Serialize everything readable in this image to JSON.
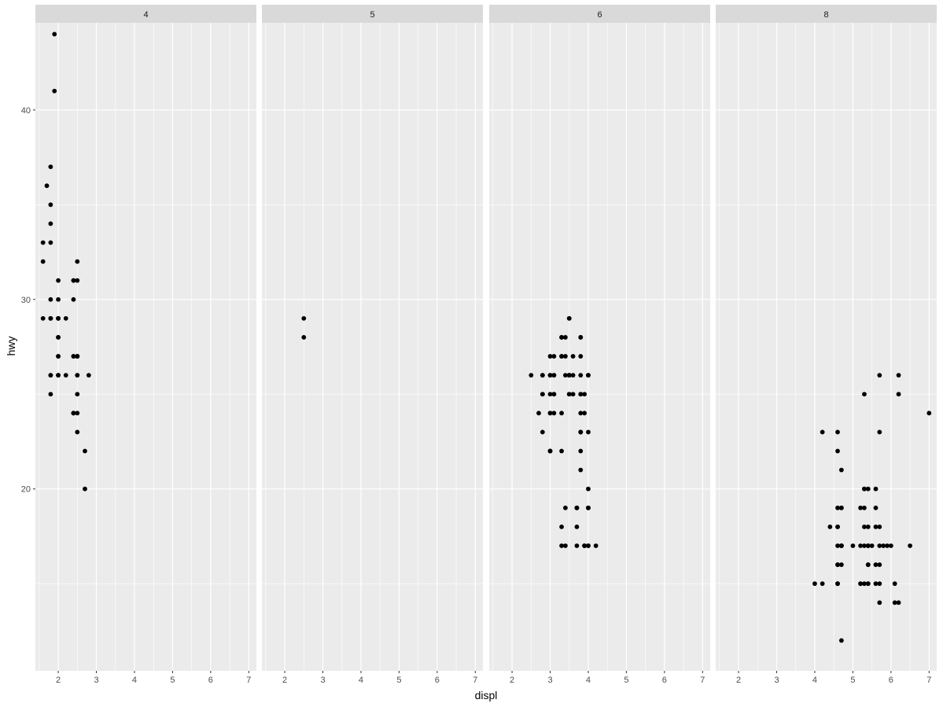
{
  "chart_data": {
    "type": "scatter",
    "facet_by": "cyl",
    "xlabel": "displ",
    "ylabel": "hwy",
    "xlim": [
      1.4,
      7.2
    ],
    "ylim": [
      10.4,
      44.6
    ],
    "x_ticks": [
      2,
      3,
      4,
      5,
      6,
      7
    ],
    "y_ticks": [
      20,
      30,
      40
    ],
    "grid": true,
    "colors": {
      "panel": "#ebebeb",
      "strip": "#d9d9d9",
      "grid": "#ffffff",
      "point": "#000000"
    },
    "facets": [
      {
        "label": "4",
        "points": [
          [
            1.8,
            29
          ],
          [
            1.8,
            29
          ],
          [
            2.0,
            31
          ],
          [
            2.0,
            30
          ],
          [
            2.8,
            26
          ],
          [
            2.0,
            28
          ],
          [
            1.8,
            26
          ],
          [
            1.8,
            25
          ],
          [
            2.0,
            29
          ],
          [
            2.0,
            26
          ],
          [
            2.4,
            27
          ],
          [
            2.4,
            30
          ],
          [
            2.2,
            26
          ],
          [
            2.2,
            29
          ],
          [
            2.4,
            27
          ],
          [
            2.4,
            31
          ],
          [
            1.8,
            26
          ],
          [
            1.9,
            44
          ],
          [
            1.9,
            41
          ],
          [
            2.0,
            29
          ],
          [
            2.0,
            26
          ],
          [
            1.8,
            29
          ],
          [
            2.5,
            26
          ],
          [
            2.5,
            27
          ],
          [
            2.5,
            25
          ],
          [
            2.5,
            27
          ],
          [
            2.5,
            24
          ],
          [
            2.5,
            26
          ],
          [
            2.5,
            31
          ],
          [
            2.5,
            32
          ],
          [
            1.6,
            33
          ],
          [
            1.6,
            32
          ],
          [
            1.7,
            36
          ],
          [
            1.8,
            37
          ],
          [
            1.8,
            35
          ],
          [
            1.6,
            29
          ],
          [
            1.8,
            34
          ],
          [
            1.8,
            33
          ],
          [
            2.4,
            24
          ],
          [
            2.4,
            24
          ],
          [
            2.0,
            29
          ],
          [
            2.0,
            28
          ],
          [
            2.0,
            27
          ],
          [
            2.4,
            24
          ],
          [
            2.5,
            23
          ],
          [
            2.7,
            22
          ],
          [
            2.7,
            20
          ],
          [
            1.8,
            30
          ],
          [
            2.0,
            29
          ],
          [
            2.0,
            26
          ],
          [
            2.4,
            31
          ],
          [
            2.0,
            27
          ],
          [
            2.5,
            27
          ]
        ]
      },
      {
        "label": "5",
        "points": [
          [
            2.5,
            29
          ],
          [
            2.5,
            28
          ]
        ]
      },
      {
        "label": "6",
        "points": [
          [
            2.8,
            26
          ],
          [
            3.1,
            27
          ],
          [
            2.8,
            25
          ],
          [
            3.1,
            25
          ],
          [
            3.1,
            25
          ],
          [
            3.8,
            24
          ],
          [
            3.8,
            23
          ],
          [
            3.8,
            22
          ],
          [
            3.9,
            17
          ],
          [
            3.9,
            17
          ],
          [
            4.0,
            17
          ],
          [
            4.0,
            19
          ],
          [
            3.0,
            26
          ],
          [
            3.3,
            17
          ],
          [
            3.3,
            18
          ],
          [
            4.0,
            26
          ],
          [
            4.0,
            26
          ],
          [
            3.4,
            19
          ],
          [
            3.7,
            19
          ],
          [
            4.0,
            20
          ],
          [
            4.2,
            17
          ],
          [
            3.4,
            17
          ],
          [
            4.0,
            19
          ],
          [
            3.5,
            26
          ],
          [
            3.5,
            26
          ],
          [
            3.8,
            25
          ],
          [
            4.0,
            23
          ],
          [
            3.3,
            27
          ],
          [
            3.3,
            24
          ],
          [
            3.8,
            27
          ],
          [
            3.8,
            26
          ],
          [
            3.8,
            28
          ],
          [
            2.5,
            26
          ],
          [
            3.5,
            25
          ],
          [
            2.7,
            24
          ],
          [
            3.3,
            22
          ],
          [
            3.0,
            25
          ],
          [
            3.0,
            24
          ],
          [
            3.4,
            27
          ],
          [
            3.1,
            26
          ],
          [
            3.6,
            26
          ],
          [
            3.9,
            25
          ],
          [
            3.3,
            28
          ],
          [
            3.5,
            29
          ],
          [
            3.5,
            26
          ],
          [
            3.7,
            19
          ],
          [
            3.7,
            18
          ],
          [
            4.0,
            17
          ],
          [
            4.0,
            19
          ],
          [
            4.0,
            26
          ],
          [
            3.5,
            25
          ],
          [
            2.8,
            23
          ],
          [
            3.0,
            22
          ],
          [
            3.5,
            29
          ],
          [
            2.8,
            25
          ],
          [
            2.8,
            26
          ],
          [
            3.6,
            27
          ],
          [
            3.8,
            28
          ],
          [
            3.8,
            21
          ],
          [
            3.8,
            23
          ],
          [
            3.7,
            19
          ],
          [
            3.3,
            27
          ],
          [
            3.3,
            28
          ],
          [
            3.0,
            26
          ],
          [
            3.0,
            27
          ],
          [
            3.4,
            26
          ],
          [
            3.6,
            25
          ],
          [
            3.1,
            24
          ],
          [
            3.1,
            26
          ],
          [
            3.4,
            28
          ],
          [
            3.7,
            17
          ],
          [
            3.5,
            26
          ],
          [
            3.0,
            24
          ],
          [
            3.0,
            22
          ],
          [
            3.9,
            24
          ],
          [
            3.9,
            17
          ],
          [
            3.8,
            25
          ],
          [
            3.8,
            23
          ],
          [
            3.0,
            22
          ]
        ]
      },
      {
        "label": "8",
        "points": [
          [
            5.7,
            26
          ],
          [
            5.7,
            23
          ],
          [
            6.2,
            26
          ],
          [
            6.2,
            25
          ],
          [
            7.0,
            24
          ],
          [
            5.3,
            20
          ],
          [
            5.3,
            15
          ],
          [
            5.3,
            20
          ],
          [
            5.7,
            17
          ],
          [
            6.5,
            17
          ],
          [
            5.7,
            15
          ],
          [
            5.3,
            25
          ],
          [
            5.3,
            17
          ],
          [
            5.7,
            14
          ],
          [
            6.0,
            17
          ],
          [
            5.4,
            15
          ],
          [
            4.7,
            17
          ],
          [
            4.7,
            17
          ],
          [
            4.7,
            12
          ],
          [
            5.2,
            15
          ],
          [
            5.7,
            16
          ],
          [
            5.9,
            17
          ],
          [
            5.2,
            17
          ],
          [
            4.7,
            19
          ],
          [
            4.6,
            15
          ],
          [
            5.4,
            18
          ],
          [
            4.6,
            17
          ],
          [
            5.0,
            17
          ],
          [
            4.6,
            18
          ],
          [
            4.2,
            15
          ],
          [
            4.6,
            16
          ],
          [
            5.4,
            17
          ],
          [
            5.4,
            16
          ],
          [
            6.1,
            15
          ],
          [
            6.2,
            14
          ],
          [
            5.4,
            15
          ],
          [
            5.3,
            18
          ],
          [
            4.6,
            18
          ],
          [
            4.7,
            21
          ],
          [
            4.6,
            19
          ],
          [
            4.6,
            22
          ],
          [
            4.6,
            23
          ],
          [
            5.6,
            18
          ],
          [
            5.6,
            16
          ],
          [
            5.4,
            17
          ],
          [
            5.6,
            19
          ],
          [
            4.0,
            15
          ],
          [
            4.7,
            17
          ],
          [
            5.3,
            19
          ],
          [
            4.4,
            18
          ],
          [
            4.2,
            23
          ],
          [
            4.7,
            19
          ],
          [
            4.7,
            16
          ],
          [
            4.6,
            15
          ],
          [
            5.2,
            15
          ],
          [
            5.6,
            15
          ],
          [
            5.4,
            17
          ],
          [
            5.7,
            18
          ],
          [
            5.4,
            16
          ],
          [
            4.7,
            17
          ],
          [
            5.2,
            19
          ],
          [
            5.8,
            17
          ],
          [
            6.1,
            14
          ],
          [
            5.5,
            17
          ],
          [
            4.6,
            16
          ],
          [
            4.6,
            15
          ],
          [
            5.4,
            20
          ],
          [
            5.6,
            20
          ]
        ]
      }
    ]
  }
}
